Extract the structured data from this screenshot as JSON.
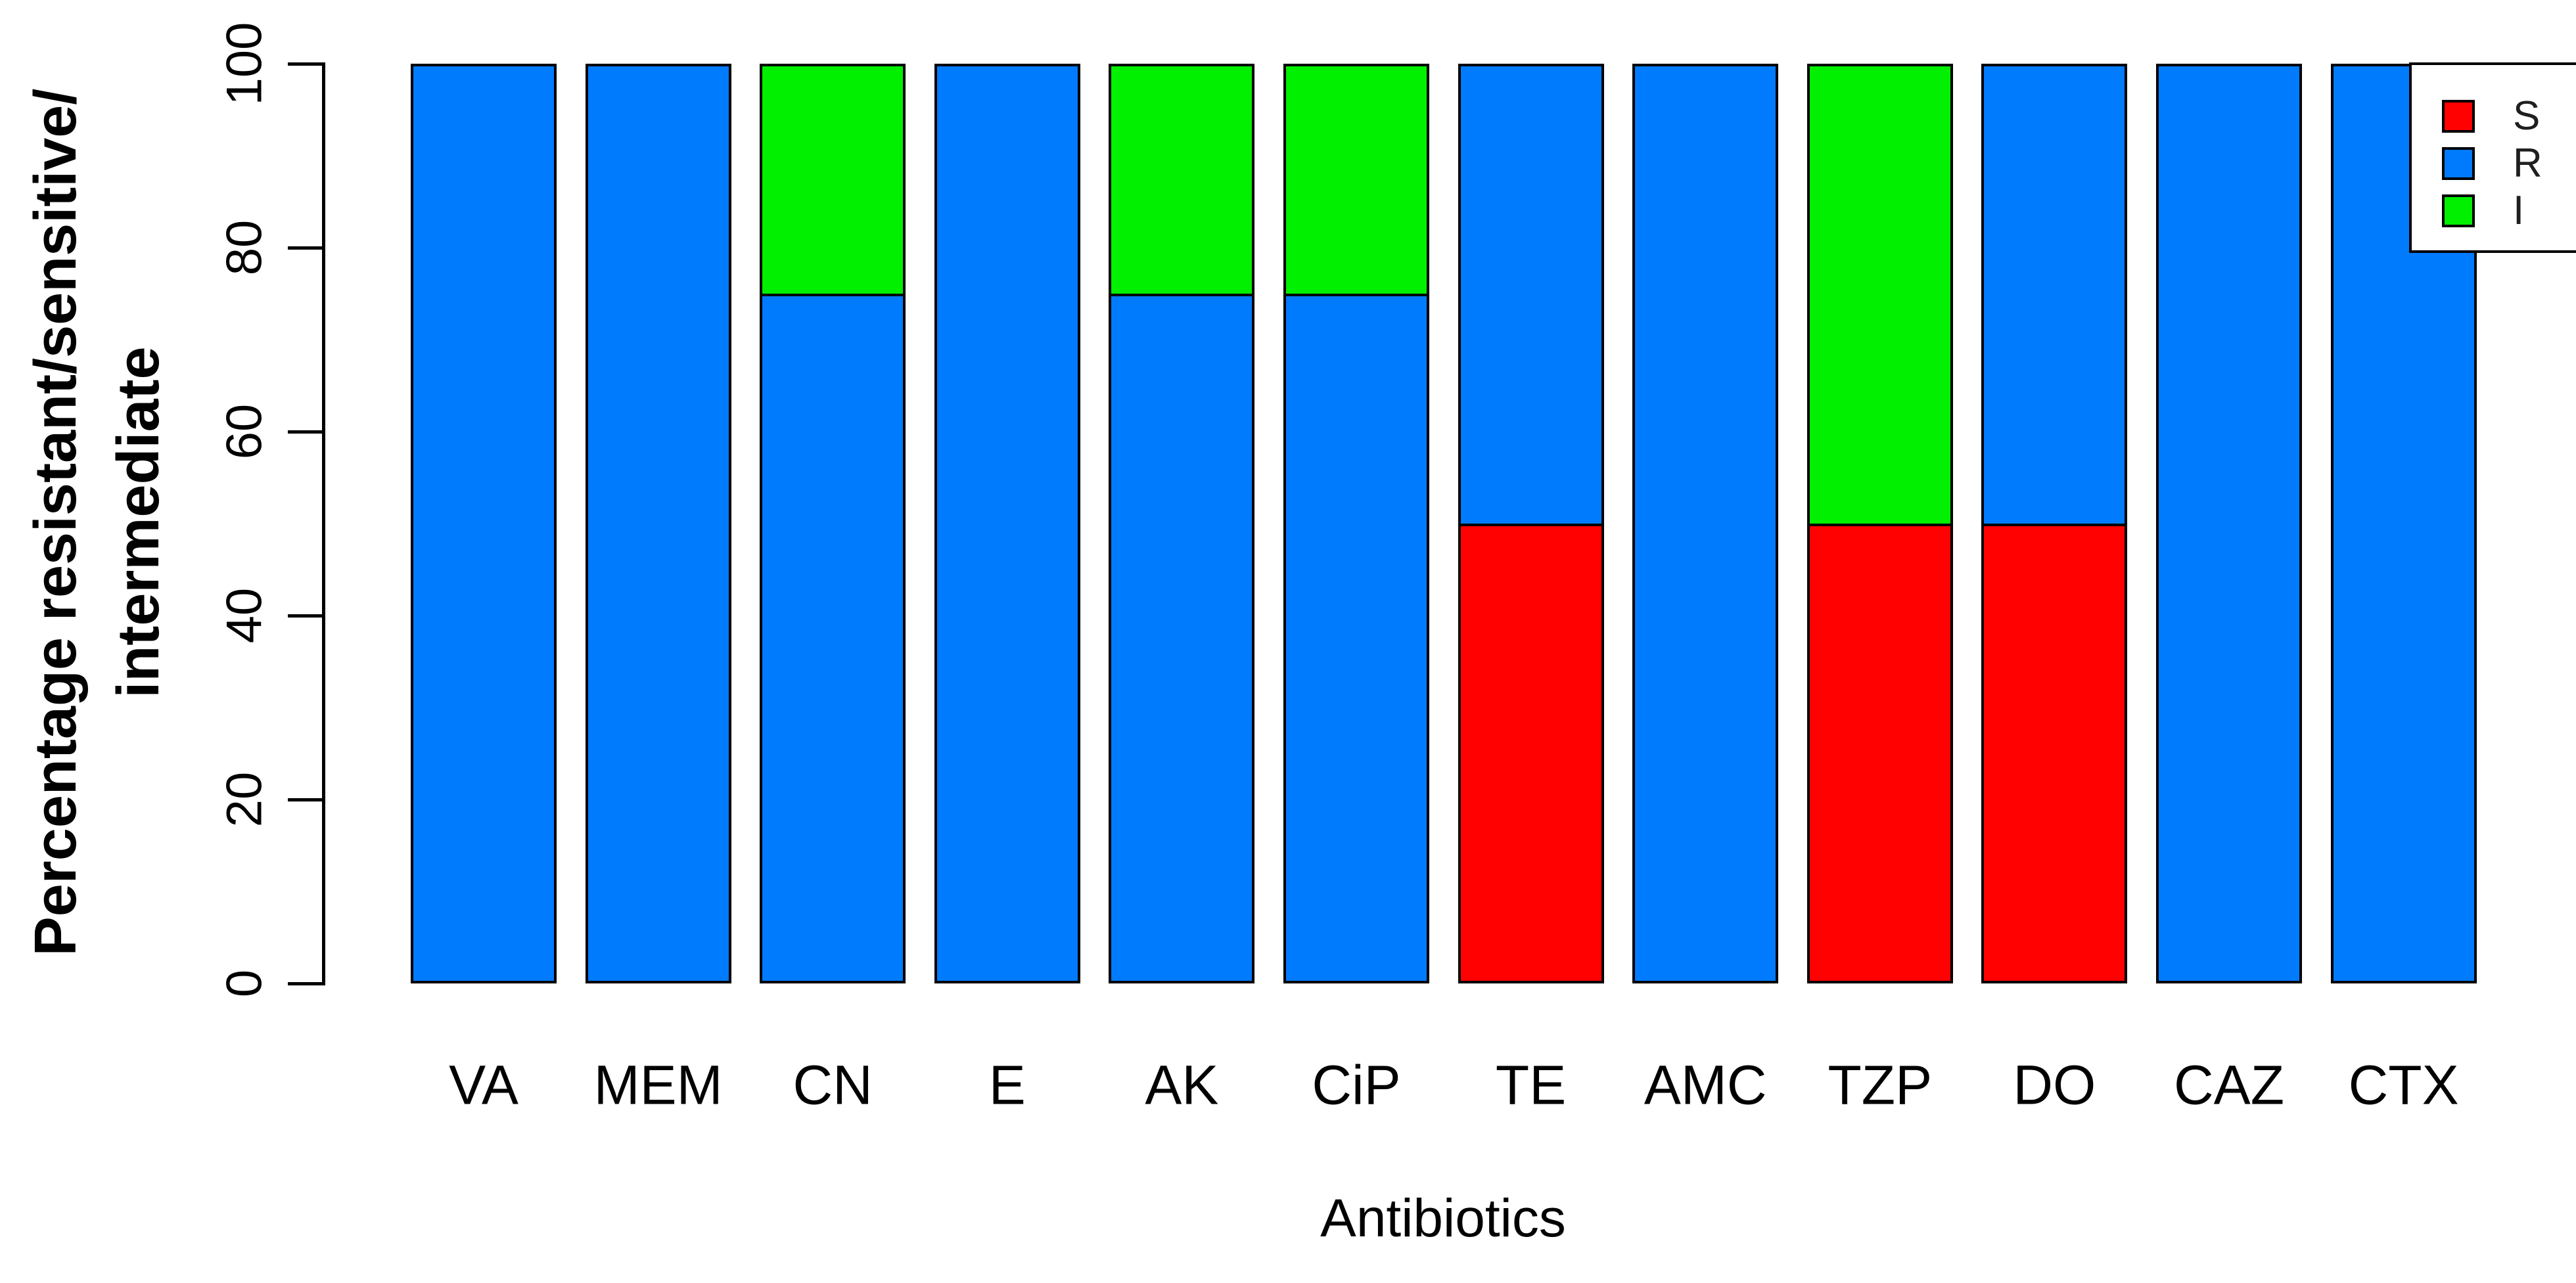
{
  "chart_data": {
    "type": "bar",
    "subtype": "stacked-vertical",
    "title": "",
    "xlabel": "Antibiotics",
    "ylabel_lines": [
      "Percentage resistant/sensitive/",
      "intermediate"
    ],
    "categories": [
      "VA",
      "MEM",
      "CN",
      "E",
      "AK",
      "CiP",
      "TE",
      "AMC",
      "TZP",
      "DO",
      "CAZ",
      "CTX"
    ],
    "series": [
      {
        "name": "S",
        "color": "#fe0100",
        "values": [
          0,
          0,
          0,
          0,
          0,
          0,
          50,
          0,
          50,
          50,
          0,
          0
        ]
      },
      {
        "name": "R",
        "color": "#017bfe",
        "values": [
          100,
          100,
          75,
          100,
          75,
          75,
          50,
          100,
          0,
          50,
          100,
          100
        ]
      },
      {
        "name": "I",
        "color": "#00f000",
        "values": [
          0,
          0,
          25,
          0,
          25,
          25,
          0,
          0,
          50,
          0,
          0,
          0
        ]
      }
    ],
    "stack_order_bottom_to_top": [
      "S",
      "R",
      "I"
    ],
    "y_ticks": [
      0,
      20,
      40,
      60,
      80,
      100
    ],
    "ylim": [
      0,
      100
    ],
    "grid": "off",
    "legend": {
      "position": "top-right",
      "entries": [
        {
          "label": "S",
          "color": "#fe0100"
        },
        {
          "label": "R",
          "color": "#017bfe"
        },
        {
          "label": "I",
          "color": "#00f000"
        }
      ]
    },
    "colors": {
      "bar_border": "#000000",
      "axis": "#000000",
      "background": "#ffffff"
    }
  }
}
